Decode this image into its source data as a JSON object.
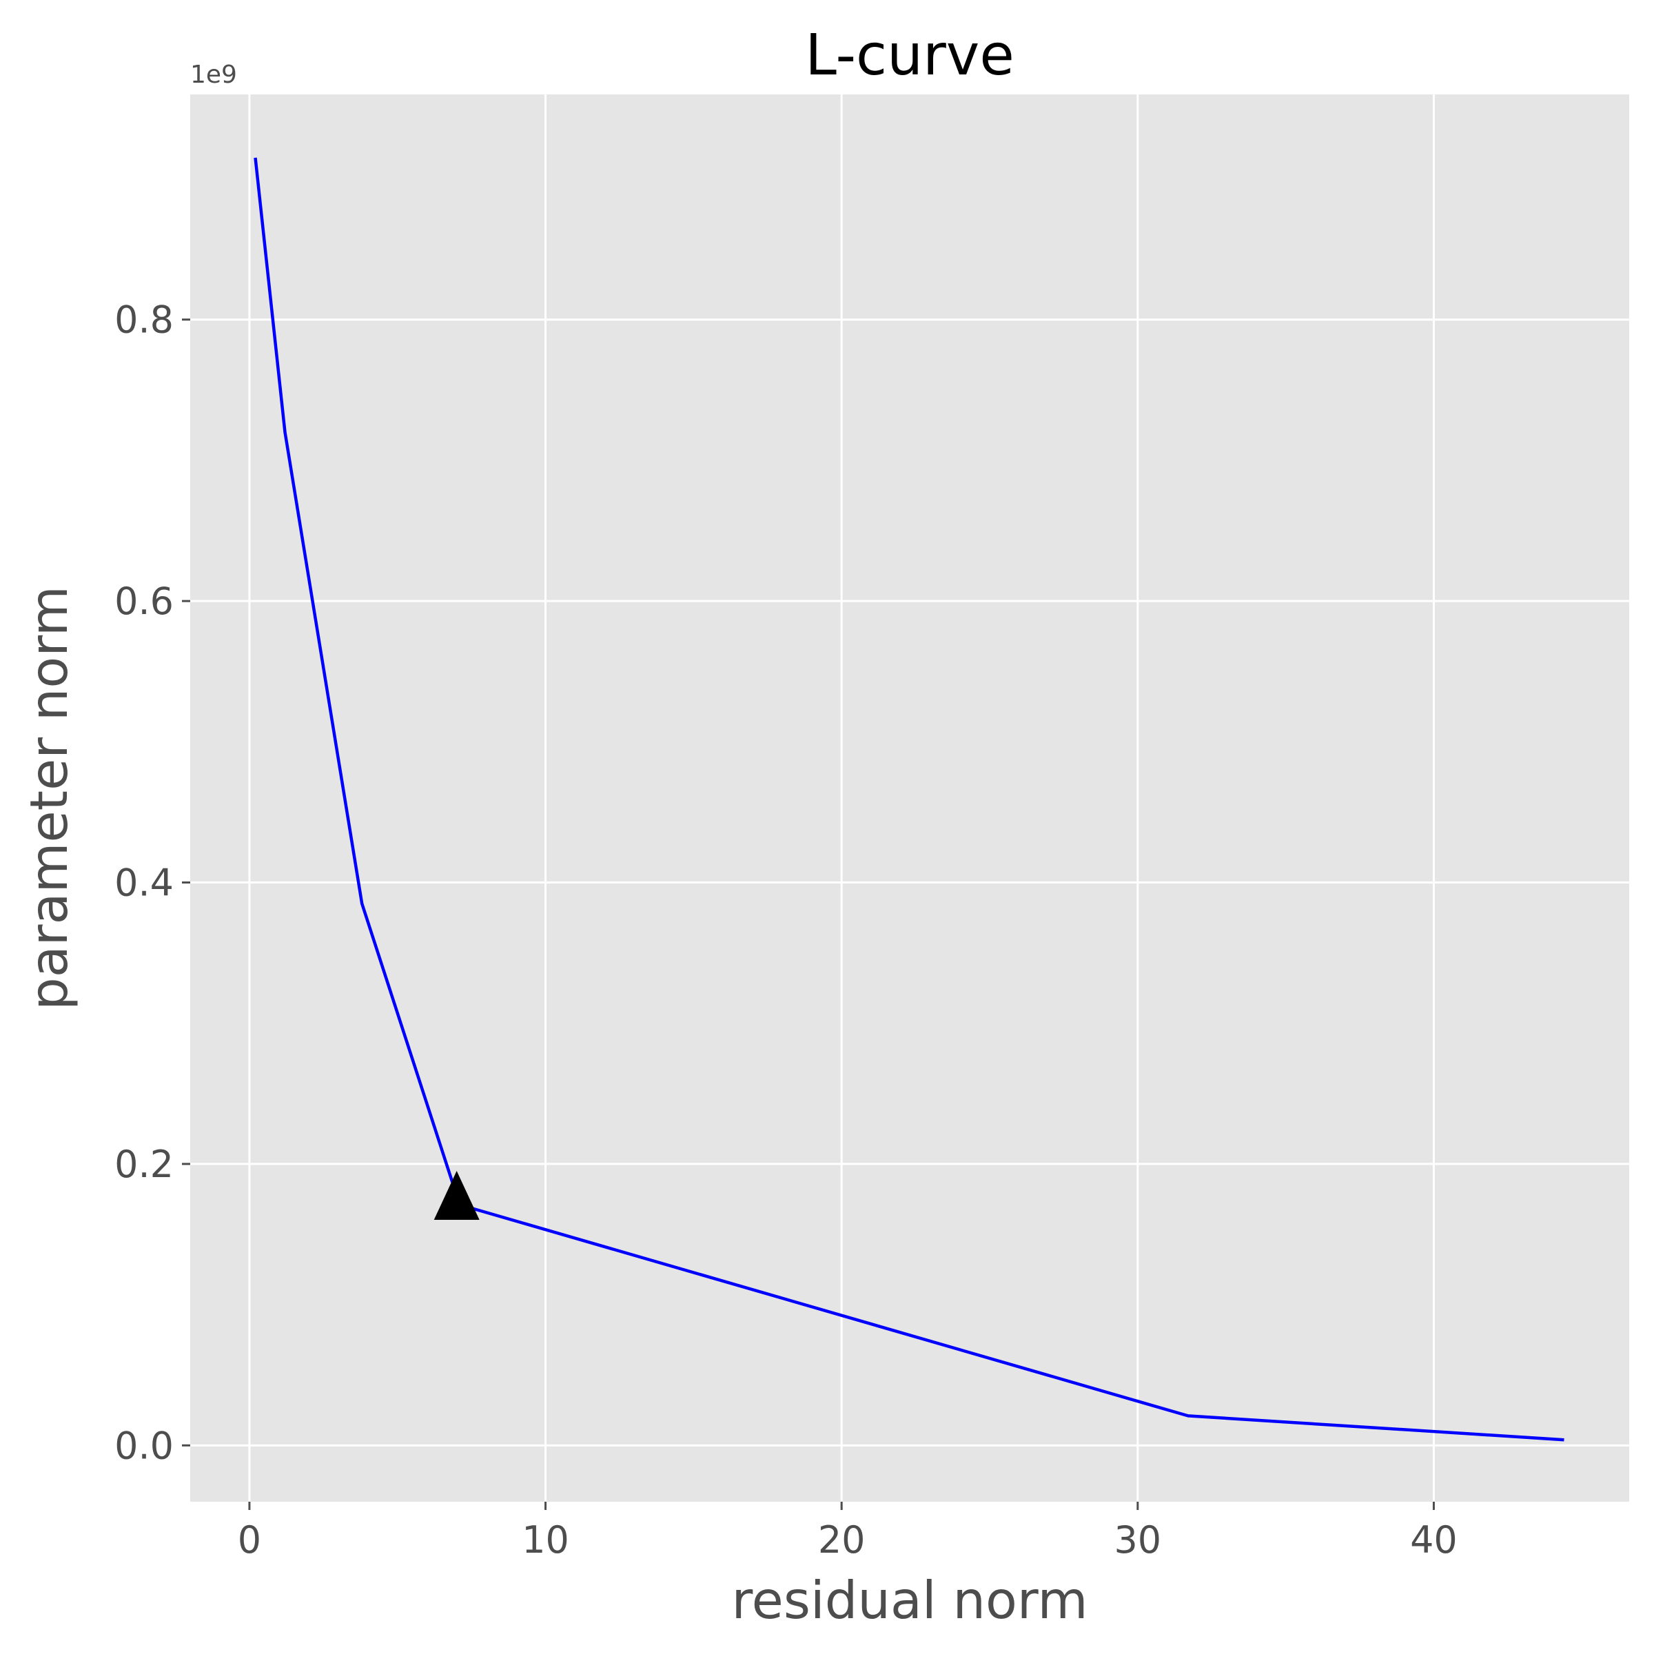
{
  "chart_data": {
    "type": "line",
    "title": "L-curve",
    "xlabel": "residual norm",
    "ylabel": "parameter norm",
    "y_offset_label": "1e9",
    "xlim": [
      -2.0,
      46.6
    ],
    "ylim": [
      -0.04,
      0.96
    ],
    "x_ticks": [
      0,
      10,
      20,
      30,
      40
    ],
    "x_tick_labels": [
      "0",
      "10",
      "20",
      "30",
      "40"
    ],
    "y_ticks": [
      0.0,
      0.2,
      0.4,
      0.6,
      0.8
    ],
    "y_tick_labels": [
      "0.0",
      "0.2",
      "0.4",
      "0.6",
      "0.8"
    ],
    "grid": true,
    "background_color": "#e5e5e5",
    "grid_color": "#ffffff",
    "series": [
      {
        "color": "#0000ff",
        "x": [
          0.2,
          1.2,
          3.8,
          7.1,
          31.7,
          44.4
        ],
        "y": [
          0.915,
          0.72,
          0.385,
          0.171,
          0.021,
          0.004
        ]
      }
    ],
    "marker": {
      "shape": "triangle",
      "color": "#000000",
      "x": 7.0,
      "y": 0.173
    }
  }
}
